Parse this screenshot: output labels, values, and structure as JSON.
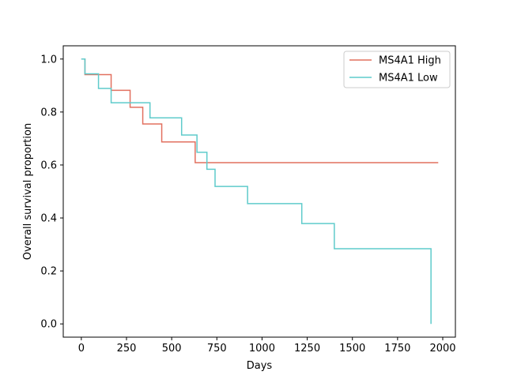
{
  "chart_data": {
    "type": "line",
    "step": true,
    "title": "",
    "xlabel": "Days",
    "ylabel": "Overall survival proportion",
    "xlim": [
      -100,
      2070
    ],
    "ylim": [
      -0.05,
      1.05
    ],
    "xticks": [
      0,
      250,
      500,
      750,
      1000,
      1250,
      1500,
      1750,
      2000
    ],
    "yticks": [
      0.0,
      0.2,
      0.4,
      0.6,
      0.8,
      1.0
    ],
    "xtick_labels": [
      "0",
      "250",
      "500",
      "750",
      "1000",
      "1250",
      "1500",
      "1750",
      "2000"
    ],
    "ytick_labels": [
      "0.0",
      "0.2",
      "0.4",
      "0.6",
      "0.8",
      "1.0"
    ],
    "grid": false,
    "legend_position": "top-right",
    "series": [
      {
        "name": "MS4A1 High",
        "color": "#e2705f",
        "x": [
          0,
          20,
          20,
          165,
          165,
          270,
          270,
          340,
          340,
          445,
          445,
          630,
          630,
          1975
        ],
        "y": [
          1.0,
          1.0,
          0.941,
          0.941,
          0.882,
          0.882,
          0.818,
          0.818,
          0.755,
          0.755,
          0.687,
          0.687,
          0.609,
          0.609
        ]
      },
      {
        "name": "MS4A1 Low",
        "color": "#5fcbcb",
        "x": [
          0,
          20,
          20,
          95,
          95,
          165,
          165,
          380,
          380,
          555,
          555,
          640,
          640,
          695,
          695,
          740,
          740,
          920,
          920,
          1220,
          1220,
          1400,
          1400,
          1935,
          1935
        ],
        "y": [
          1.0,
          1.0,
          0.944,
          0.944,
          0.889,
          0.889,
          0.835,
          0.835,
          0.778,
          0.778,
          0.713,
          0.713,
          0.648,
          0.648,
          0.584,
          0.584,
          0.519,
          0.519,
          0.454,
          0.454,
          0.379,
          0.379,
          0.284,
          0.284,
          0.0
        ]
      }
    ]
  }
}
